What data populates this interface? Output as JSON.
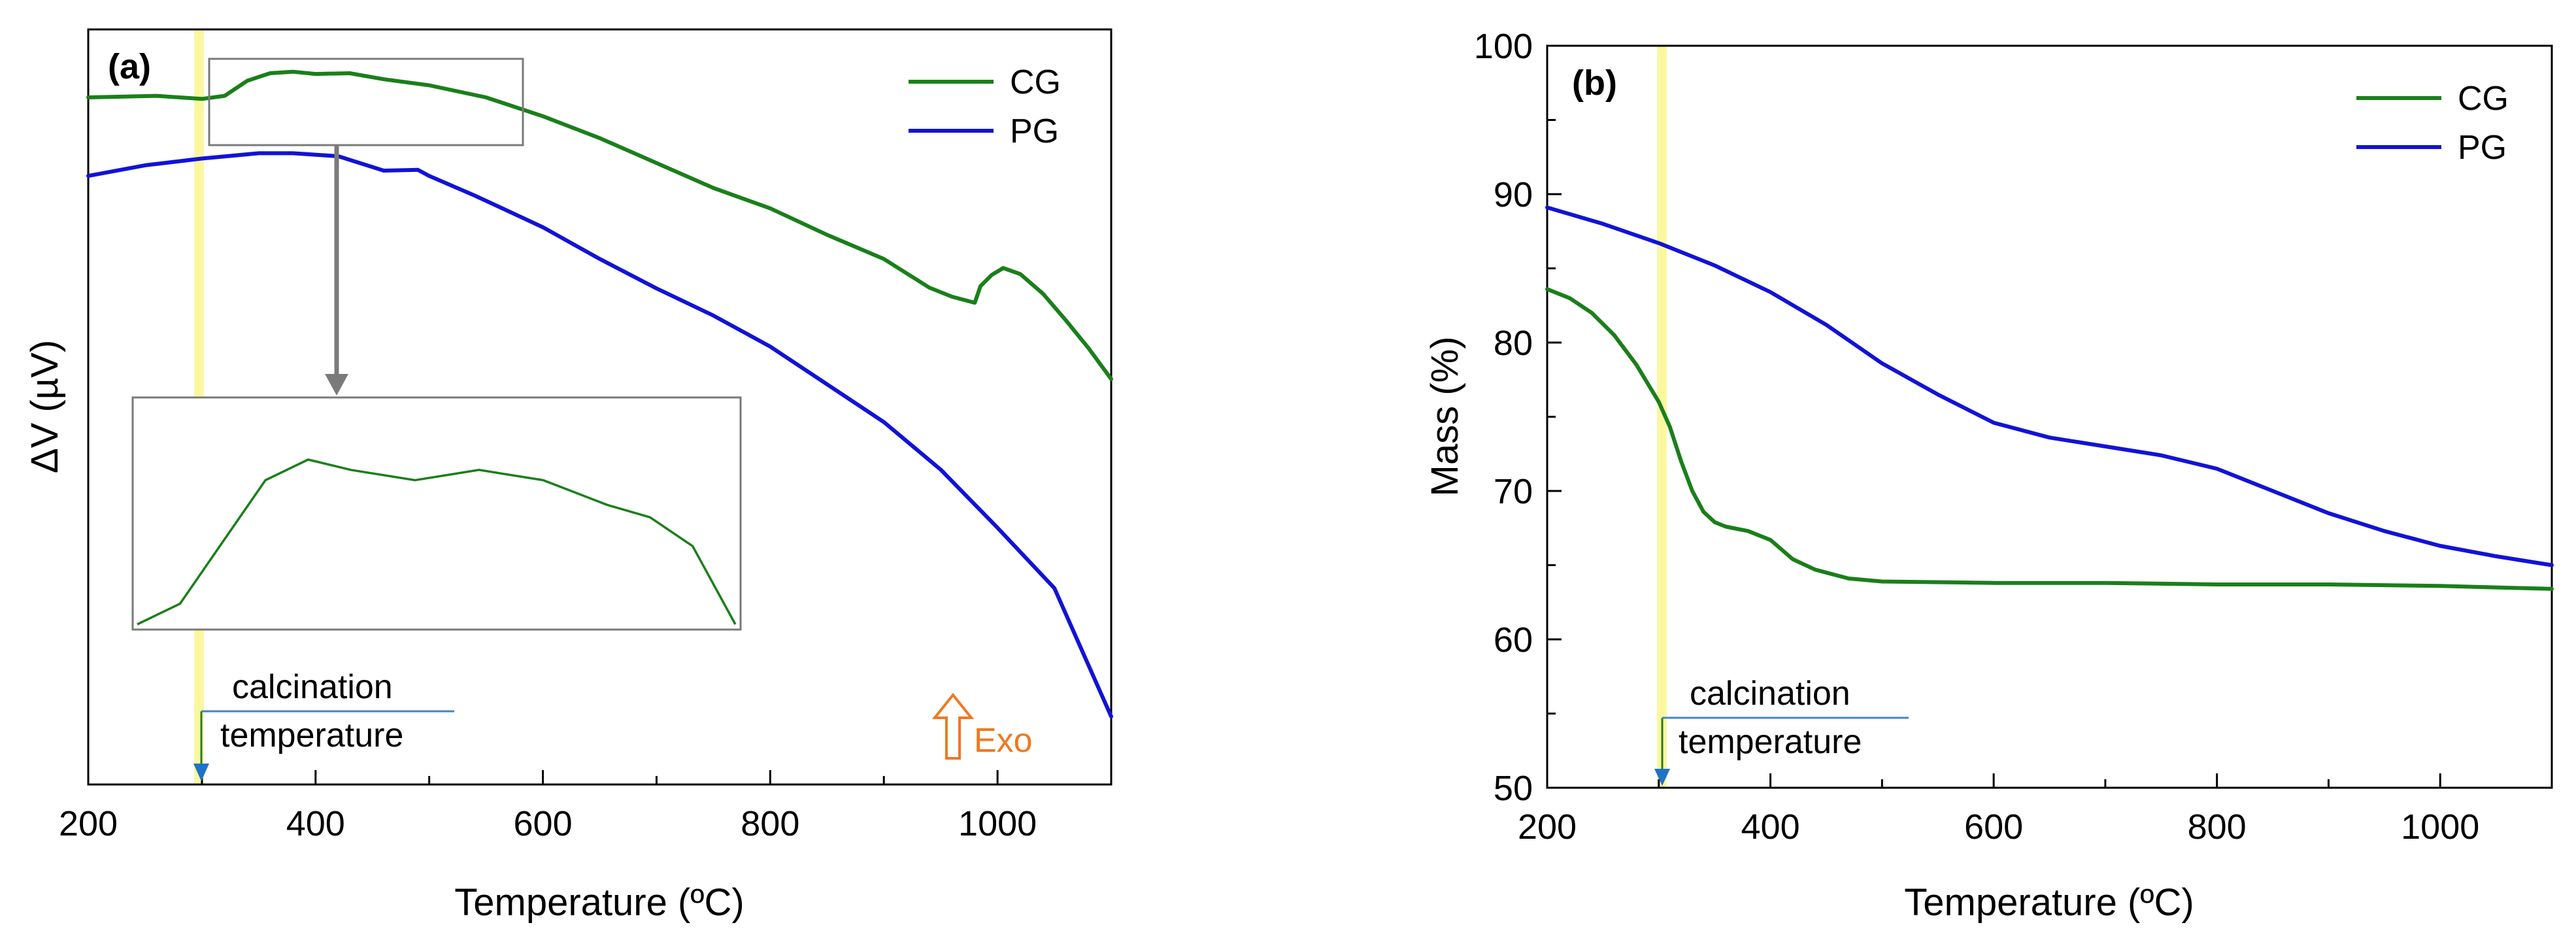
{
  "chart_data": [
    {
      "type": "line",
      "panel_label": "(a)",
      "xlabel": "Temperature (ºC)",
      "ylabel": "ΔV (µV)",
      "xlim": [
        200,
        1100
      ],
      "ylim": [
        0,
        100
      ],
      "xticks": [
        200,
        400,
        600,
        800,
        1000
      ],
      "xtick_labels": [
        "200",
        "400",
        "600",
        "800",
        "1000"
      ],
      "legend": {
        "position": "top-right",
        "entries": [
          "CG",
          "PG"
        ]
      },
      "series": [
        {
          "name": "CG",
          "color": "#1a7f1a",
          "points": [
            [
              200,
              91
            ],
            [
              260,
              91.2
            ],
            [
              300,
              90.8
            ],
            [
              320,
              91.2
            ],
            [
              340,
              93.2
            ],
            [
              360,
              94.2
            ],
            [
              380,
              94.4
            ],
            [
              400,
              94.1
            ],
            [
              430,
              94.2
            ],
            [
              460,
              93.4
            ],
            [
              500,
              92.6
            ],
            [
              550,
              91
            ],
            [
              600,
              88.5
            ],
            [
              650,
              85.6
            ],
            [
              700,
              82.3
            ],
            [
              750,
              79
            ],
            [
              800,
              76.3
            ],
            [
              850,
              72.8
            ],
            [
              900,
              69.6
            ],
            [
              940,
              65.8
            ],
            [
              960,
              64.6
            ],
            [
              980,
              63.8
            ],
            [
              985,
              66
            ],
            [
              995,
              67.5
            ],
            [
              1005,
              68.4
            ],
            [
              1020,
              67.6
            ],
            [
              1040,
              65
            ],
            [
              1060,
              61.5
            ],
            [
              1080,
              57.8
            ],
            [
              1100,
              53.7
            ]
          ]
        },
        {
          "name": "PG",
          "color": "#1212d8",
          "points": [
            [
              200,
              80.6
            ],
            [
              250,
              82
            ],
            [
              300,
              82.9
            ],
            [
              350,
              83.6
            ],
            [
              380,
              83.6
            ],
            [
              420,
              83.2
            ],
            [
              460,
              81.3
            ],
            [
              490,
              81.4
            ],
            [
              500,
              80.6
            ],
            [
              540,
              78
            ],
            [
              600,
              73.8
            ],
            [
              650,
              69.6
            ],
            [
              700,
              65.7
            ],
            [
              750,
              62.1
            ],
            [
              800,
              58
            ],
            [
              850,
              53
            ],
            [
              900,
              48
            ],
            [
              950,
              41.7
            ],
            [
              1000,
              34
            ],
            [
              1050,
              26
            ],
            [
              1100,
              9
            ]
          ]
        }
      ],
      "annotations": {
        "calcination_temperature_x": 300,
        "calcination_label_line1": "calcination",
        "calcination_label_line2": "temperature",
        "exo_label": "Exo",
        "inset": {
          "zoom_x_range": [
            300,
            580
          ],
          "series": "CG",
          "description_points": [
            [
              300,
              0
            ],
            [
              320,
              10
            ],
            [
              340,
              40
            ],
            [
              360,
              70
            ],
            [
              380,
              80
            ],
            [
              400,
              75
            ],
            [
              430,
              70
            ],
            [
              460,
              75
            ],
            [
              490,
              70
            ],
            [
              520,
              58
            ],
            [
              540,
              52
            ],
            [
              560,
              38
            ],
            [
              580,
              0
            ]
          ]
        }
      }
    },
    {
      "type": "line",
      "panel_label": "(b)",
      "xlabel": "Temperature (ºC)",
      "ylabel": "Mass (%)",
      "xlim": [
        200,
        1100
      ],
      "ylim": [
        50,
        100
      ],
      "xticks": [
        200,
        400,
        600,
        800,
        1000
      ],
      "xtick_labels": [
        "200",
        "400",
        "600",
        "800",
        "1000"
      ],
      "yticks": [
        50,
        60,
        70,
        80,
        90,
        100
      ],
      "ytick_labels": [
        "50",
        "60",
        "70",
        "80",
        "90",
        "100"
      ],
      "legend": {
        "position": "top-right",
        "entries": [
          "CG",
          "PG"
        ]
      },
      "series": [
        {
          "name": "CG",
          "color": "#1a7f1a",
          "points": [
            [
              200,
              83.6
            ],
            [
              220,
              83
            ],
            [
              240,
              82
            ],
            [
              260,
              80.5
            ],
            [
              280,
              78.5
            ],
            [
              300,
              76
            ],
            [
              310,
              74.3
            ],
            [
              320,
              72
            ],
            [
              330,
              70
            ],
            [
              340,
              68.6
            ],
            [
              350,
              67.9
            ],
            [
              360,
              67.6
            ],
            [
              380,
              67.3
            ],
            [
              400,
              66.7
            ],
            [
              420,
              65.4
            ],
            [
              440,
              64.7
            ],
            [
              470,
              64.1
            ],
            [
              500,
              63.9
            ],
            [
              600,
              63.8
            ],
            [
              700,
              63.8
            ],
            [
              800,
              63.7
            ],
            [
              900,
              63.7
            ],
            [
              1000,
              63.6
            ],
            [
              1100,
              63.4
            ]
          ]
        },
        {
          "name": "PG",
          "color": "#1212d8",
          "points": [
            [
              200,
              89.1
            ],
            [
              250,
              88
            ],
            [
              300,
              86.7
            ],
            [
              350,
              85.2
            ],
            [
              400,
              83.4
            ],
            [
              450,
              81.2
            ],
            [
              500,
              78.6
            ],
            [
              550,
              76.5
            ],
            [
              600,
              74.6
            ],
            [
              650,
              73.6
            ],
            [
              700,
              73
            ],
            [
              750,
              72.4
            ],
            [
              800,
              71.5
            ],
            [
              850,
              70
            ],
            [
              900,
              68.5
            ],
            [
              950,
              67.3
            ],
            [
              1000,
              66.3
            ],
            [
              1050,
              65.6
            ],
            [
              1100,
              65
            ]
          ]
        }
      ],
      "annotations": {
        "calcination_temperature_x": 300,
        "calcination_label_line1": "calcination",
        "calcination_label_line2": "temperature"
      }
    }
  ]
}
